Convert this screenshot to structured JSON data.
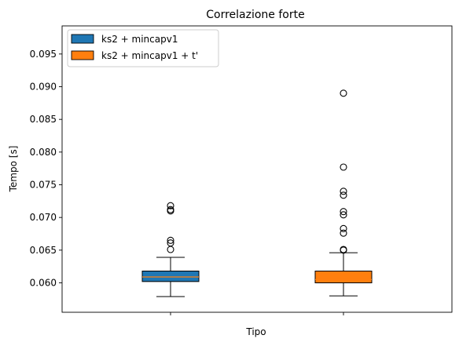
{
  "chart_data": {
    "type": "box",
    "title": "Correlazione forte",
    "xlabel": "Tipo",
    "ylabel": "Tempo [s]",
    "ylim": [
      0.0555,
      0.0993
    ],
    "yticks": [
      "0.060",
      "0.065",
      "0.070",
      "0.075",
      "0.080",
      "0.085",
      "0.090",
      "0.095"
    ],
    "grid": false,
    "legend_position": "top-left",
    "series": [
      {
        "name": "ks2 + mincapv1",
        "color": "#1f77b4",
        "whisker_low": 0.0579,
        "q1": 0.0602,
        "median": 0.0609,
        "q3": 0.0618,
        "whisker_high": 0.0639,
        "outliers": [
          0.0651,
          0.0661,
          0.0665,
          0.071,
          0.0712,
          0.0718
        ]
      },
      {
        "name": "ks2 + mincapv1 + t'",
        "color": "#ff7f0e",
        "whisker_low": 0.058,
        "q1": 0.06,
        "median": 0.0605,
        "q3": 0.0618,
        "whisker_high": 0.0646,
        "outliers": [
          0.065,
          0.0651,
          0.0676,
          0.0683,
          0.0704,
          0.0709,
          0.0734,
          0.074,
          0.0777,
          0.089
        ]
      }
    ]
  }
}
